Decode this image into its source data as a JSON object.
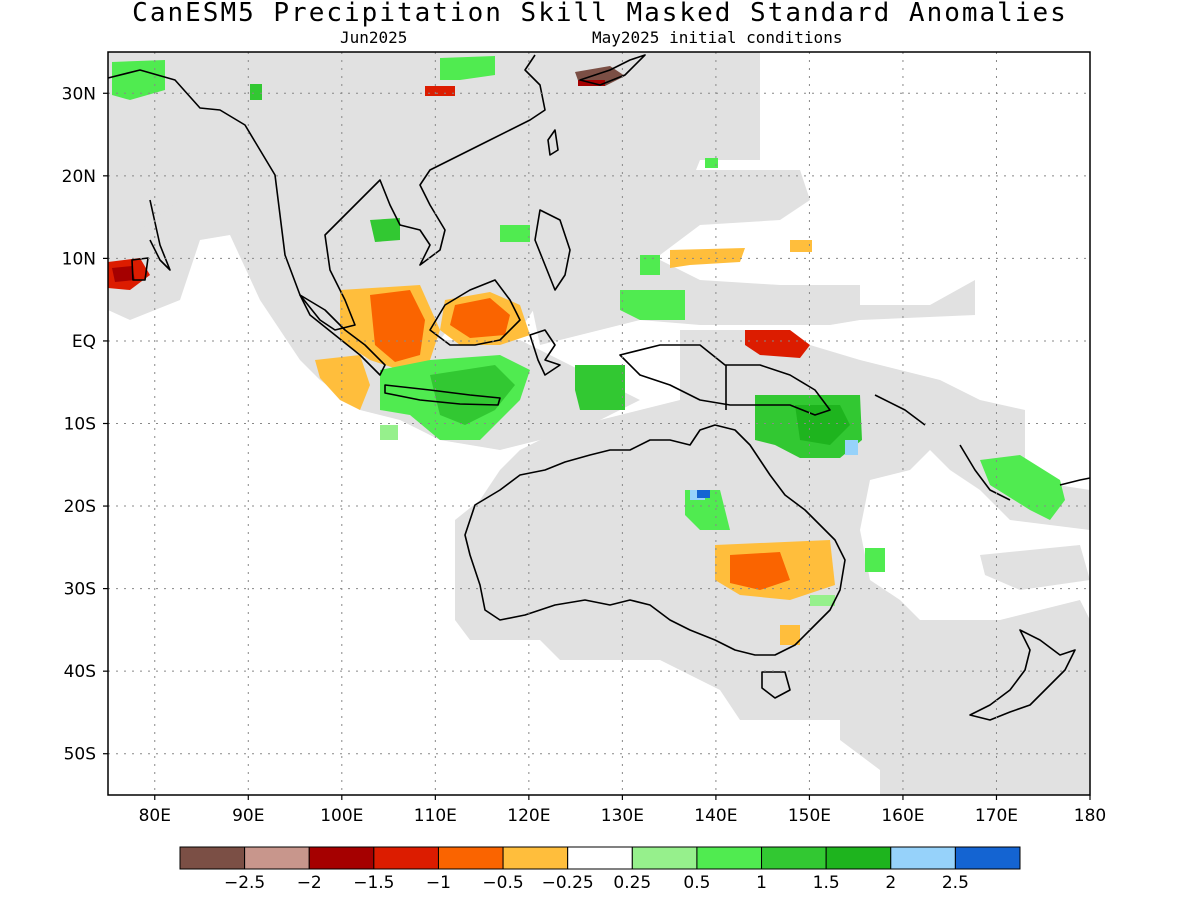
{
  "title": "CanESM5 Precipitation Skill Masked Standard Anomalies",
  "subtitle_left": "Jun2025",
  "subtitle_right": "May2025 initial conditions",
  "map": {
    "lon_range": [
      75,
      180
    ],
    "lat_range": [
      -55,
      35
    ],
    "lat_ticks": [
      "30N",
      "20N",
      "10N",
      "EQ",
      "10S",
      "20S",
      "30S",
      "40S",
      "50S"
    ],
    "lat_values": [
      30,
      20,
      10,
      0,
      -10,
      -20,
      -30,
      -40,
      -50
    ],
    "lon_ticks": [
      "80E",
      "90E",
      "100E",
      "110E",
      "120E",
      "130E",
      "140E",
      "150E",
      "160E",
      "170E",
      "180"
    ],
    "lon_values": [
      80,
      90,
      100,
      110,
      120,
      130,
      140,
      150,
      160,
      170,
      180
    ],
    "grid": true,
    "mask_color": "#e1e1e1"
  },
  "colorbar": {
    "colors": [
      "#7b4f45",
      "#c8968c",
      "#a50000",
      "#dc1c00",
      "#fa6400",
      "#ffbe3c",
      "#ffffff",
      "#96f08c",
      "#50eb50",
      "#32c832",
      "#1eb41e",
      "#96d2fa",
      "#1464d2"
    ],
    "labels": [
      "-2.5",
      "-2",
      "-1.5",
      "-1",
      "-0.5",
      "-0.25",
      "0.25",
      "0.5",
      "1",
      "1.5",
      "2",
      "2.5"
    ]
  }
}
